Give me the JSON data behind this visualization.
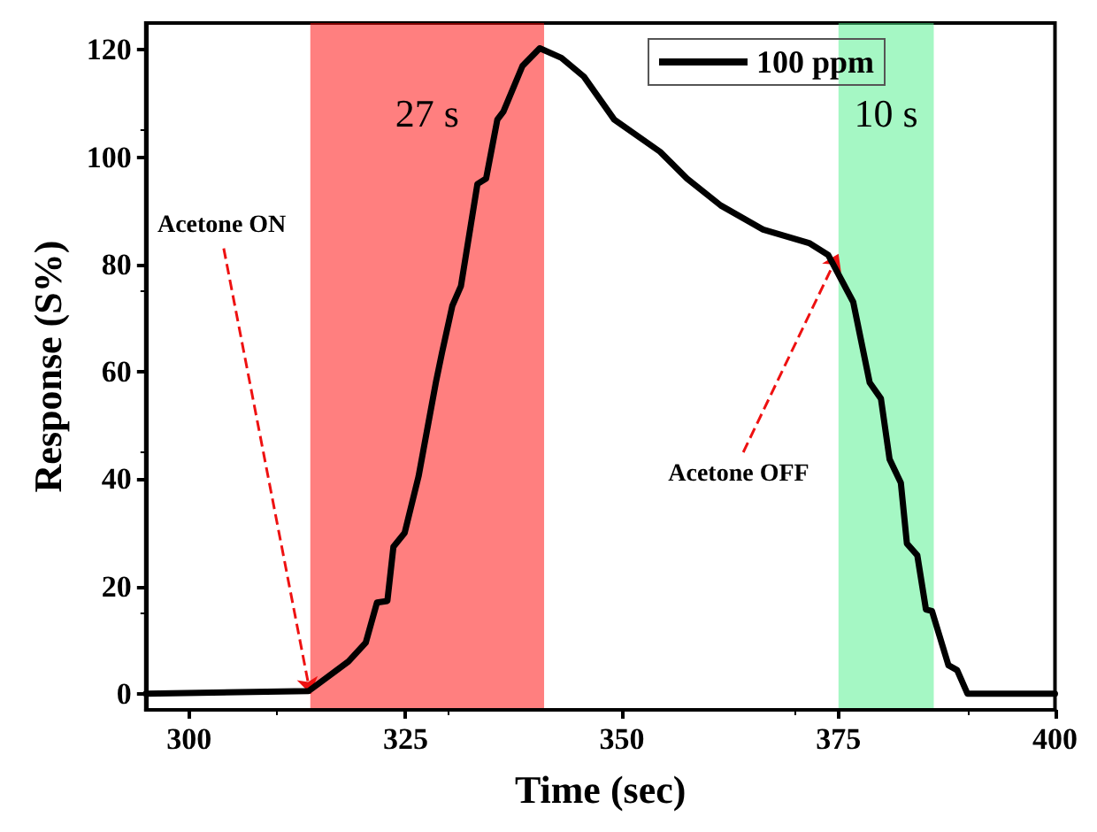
{
  "chart_data": {
    "type": "line",
    "xlabel": "Time (sec)",
    "ylabel": "Response (S%)",
    "x": [
      295,
      313.8,
      318.4,
      320.4,
      321.7,
      322.9,
      323.6,
      324.9,
      326.5,
      328.5,
      329.2,
      330.4,
      331.4,
      333.3,
      334.3,
      335.6,
      336.3,
      338.5,
      340.5,
      343,
      345.6,
      349.1,
      354.4,
      357.5,
      361.4,
      366.3,
      371.6,
      373.8,
      376.7,
      378.6,
      379.9,
      380.9,
      382.2,
      382.9,
      384.1,
      385.1,
      385.8,
      387.7,
      388.7,
      389.9,
      400
    ],
    "series": [
      {
        "name": "100 ppm",
        "color": "#000000",
        "values": [
          0,
          0.5,
          6,
          9.5,
          17,
          17.3,
          27.4,
          30,
          40.5,
          58,
          63.5,
          72.3,
          76,
          95,
          96,
          107,
          108.5,
          117,
          120.3,
          118.5,
          115,
          107,
          101,
          96,
          91,
          86.5,
          84,
          81.8,
          73,
          58,
          55,
          43.7,
          39.3,
          28,
          25.8,
          15.7,
          15.4,
          5.3,
          4.4,
          0,
          0
        ]
      }
    ],
    "xlim": [
      295,
      400
    ],
    "xticks": [
      300,
      325,
      350,
      375,
      400
    ],
    "ylim": [
      -3,
      125
    ],
    "yticks": [
      0,
      20,
      40,
      60,
      80,
      100,
      120
    ],
    "grid": false,
    "legend": "top right",
    "marker": "none",
    "line_style": "solid",
    "bands": [
      {
        "axis": "x",
        "from": 314,
        "to": 341,
        "label": "27 s",
        "color": "#ff0000"
      },
      {
        "axis": "x",
        "from": 375,
        "to": 386,
        "label": "10 s",
        "color": "#4cf08a"
      }
    ],
    "annotations": [
      {
        "text": "Acetone ON",
        "x": 314,
        "y": 0
      },
      {
        "text": "Acetone OFF",
        "x": 375,
        "y": 82
      }
    ]
  }
}
